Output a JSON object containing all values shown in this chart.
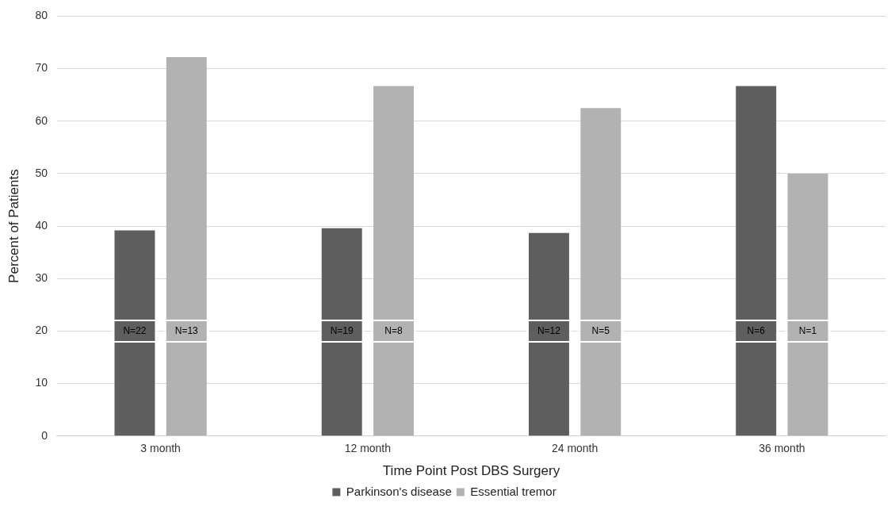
{
  "chart_data": {
    "type": "bar",
    "xlabel": "Time Point Post DBS Surgery",
    "ylabel": "Percent of Patients",
    "categories": [
      "3 month",
      "12 month",
      "24 month",
      "36 month"
    ],
    "series": [
      {
        "name": "Parkinson's disease",
        "color": "#5e5e5e",
        "values": [
          39.2,
          39.6,
          38.7,
          66.7
        ]
      },
      {
        "name": "Essential tremor",
        "color": "#b2b2b2",
        "values": [
          72.2,
          66.7,
          62.5,
          50
        ]
      }
    ],
    "ylim": [
      0,
      80
    ],
    "yticks": [
      0,
      10,
      20,
      30,
      40,
      50,
      60,
      70,
      80
    ],
    "grid": "y",
    "legend": "bottom",
    "annotations": [
      "N=22",
      "N=13",
      "N=19",
      "N=8",
      "N=12",
      "N=5",
      "N=6",
      "N=1"
    ]
  }
}
